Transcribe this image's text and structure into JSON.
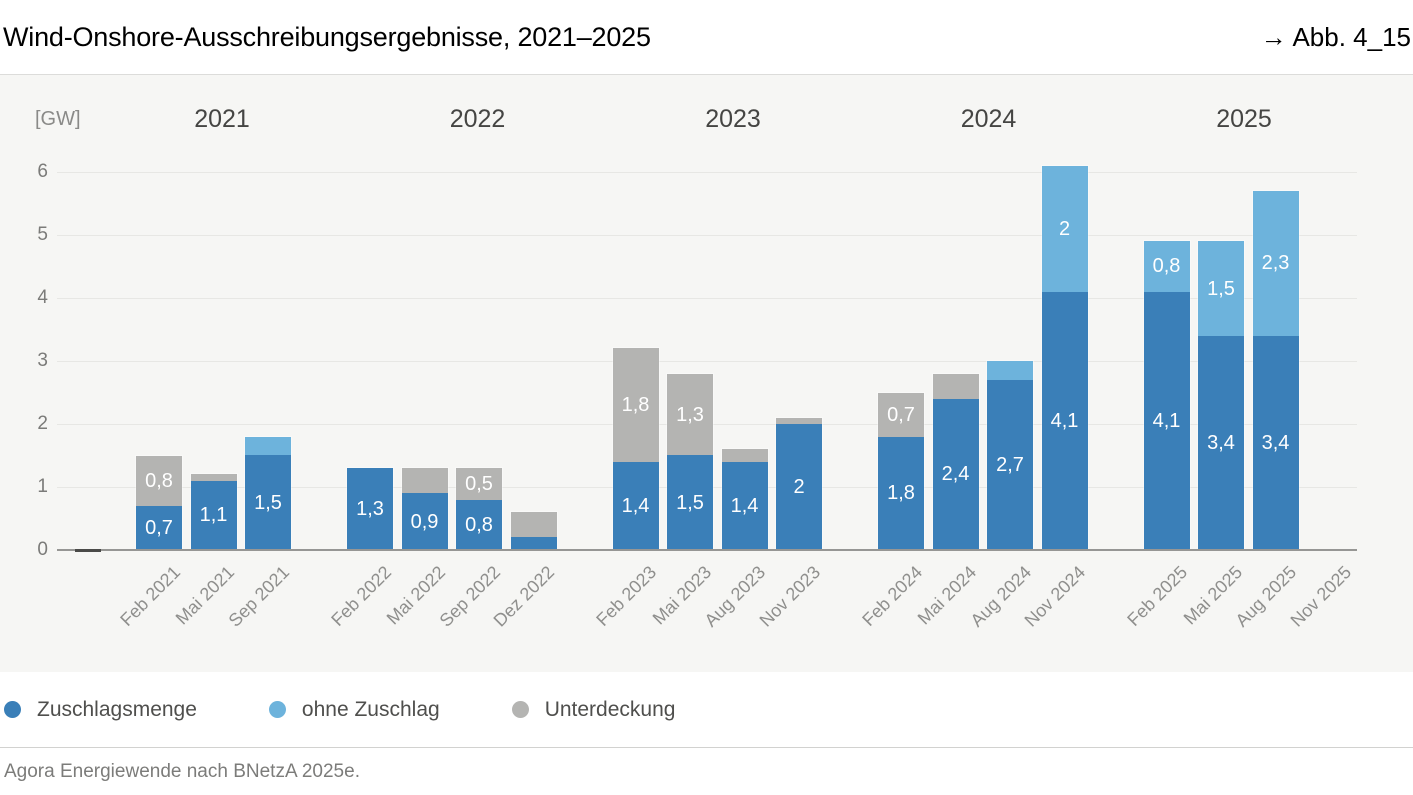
{
  "header": {
    "title": "Wind-Onshore-Ausschreibungsergebnisse, 2021–2025",
    "figure_ref": "→ Abb. 4_15"
  },
  "footer": {
    "source": "Agora Energiewende nach BNetzA 2025e."
  },
  "legend": [
    {
      "label": "Zuschlagsmenge",
      "color": "#3a7fb8"
    },
    {
      "label": "ohne Zuschlag",
      "color": "#6db3dc"
    },
    {
      "label": "Unterdeckung",
      "color": "#b4b4b2"
    }
  ],
  "chart_data": {
    "type": "bar",
    "stacked": true,
    "title": "Wind-Onshore-Ausschreibungsergebnisse, 2021–2025",
    "unit_label": "[GW]",
    "ylabel": "GW",
    "ylim": [
      0,
      6
    ],
    "yticks": [
      0,
      1,
      2,
      3,
      4,
      5,
      6
    ],
    "grid": "horizontal",
    "legend_position": "bottom",
    "series_names": [
      "Zuschlagsmenge",
      "ohne Zuschlag",
      "Unterdeckung"
    ],
    "colors": {
      "Zuschlagsmenge": "#3a7fb8",
      "ohne Zuschlag": "#6db3dc",
      "Unterdeckung": "#b4b4b2"
    },
    "groups": [
      {
        "year": "2021",
        "bars": [
          {
            "month": "Feb 2021",
            "segments": [
              {
                "series": "Zuschlagsmenge",
                "value": 0.7,
                "label": "0,7"
              },
              {
                "series": "Unterdeckung",
                "value": 0.8,
                "label": "0,8"
              }
            ]
          },
          {
            "month": "Mai 2021",
            "segments": [
              {
                "series": "Zuschlagsmenge",
                "value": 1.1,
                "label": "1,1"
              },
              {
                "series": "Unterdeckung",
                "value": 0.1,
                "label": ""
              }
            ]
          },
          {
            "month": "Sep 2021",
            "segments": [
              {
                "series": "Zuschlagsmenge",
                "value": 1.5,
                "label": "1,5"
              },
              {
                "series": "ohne Zuschlag",
                "value": 0.3,
                "label": ""
              }
            ]
          }
        ]
      },
      {
        "year": "2022",
        "bars": [
          {
            "month": "Feb 2022",
            "segments": [
              {
                "series": "Zuschlagsmenge",
                "value": 1.3,
                "label": "1,3"
              }
            ]
          },
          {
            "month": "Mai 2022",
            "segments": [
              {
                "series": "Zuschlagsmenge",
                "value": 0.9,
                "label": "0,9"
              },
              {
                "series": "Unterdeckung",
                "value": 0.4,
                "label": ""
              }
            ]
          },
          {
            "month": "Sep 2022",
            "segments": [
              {
                "series": "Zuschlagsmenge",
                "value": 0.8,
                "label": "0,8"
              },
              {
                "series": "Unterdeckung",
                "value": 0.5,
                "label": "0,5"
              }
            ]
          },
          {
            "month": "Dez 2022",
            "segments": [
              {
                "series": "Zuschlagsmenge",
                "value": 0.2,
                "label": ""
              },
              {
                "series": "Unterdeckung",
                "value": 0.4,
                "label": ""
              }
            ]
          }
        ]
      },
      {
        "year": "2023",
        "bars": [
          {
            "month": "Feb 2023",
            "segments": [
              {
                "series": "Zuschlagsmenge",
                "value": 1.4,
                "label": "1,4"
              },
              {
                "series": "Unterdeckung",
                "value": 1.8,
                "label": "1,8"
              }
            ]
          },
          {
            "month": "Mai 2023",
            "segments": [
              {
                "series": "Zuschlagsmenge",
                "value": 1.5,
                "label": "1,5"
              },
              {
                "series": "Unterdeckung",
                "value": 1.3,
                "label": "1,3"
              }
            ]
          },
          {
            "month": "Aug 2023",
            "segments": [
              {
                "series": "Zuschlagsmenge",
                "value": 1.4,
                "label": "1,4"
              },
              {
                "series": "Unterdeckung",
                "value": 0.2,
                "label": ""
              }
            ]
          },
          {
            "month": "Nov 2023",
            "segments": [
              {
                "series": "Zuschlagsmenge",
                "value": 2.0,
                "label": "2"
              },
              {
                "series": "Unterdeckung",
                "value": 0.1,
                "label": ""
              }
            ]
          }
        ]
      },
      {
        "year": "2024",
        "bars": [
          {
            "month": "Feb 2024",
            "segments": [
              {
                "series": "Zuschlagsmenge",
                "value": 1.8,
                "label": "1,8"
              },
              {
                "series": "Unterdeckung",
                "value": 0.7,
                "label": "0,7"
              }
            ]
          },
          {
            "month": "Mai 2024",
            "segments": [
              {
                "series": "Zuschlagsmenge",
                "value": 2.4,
                "label": "2,4"
              },
              {
                "series": "Unterdeckung",
                "value": 0.4,
                "label": ""
              }
            ]
          },
          {
            "month": "Aug 2024",
            "segments": [
              {
                "series": "Zuschlagsmenge",
                "value": 2.7,
                "label": "2,7"
              },
              {
                "series": "ohne Zuschlag",
                "value": 0.3,
                "label": ""
              }
            ]
          },
          {
            "month": "Nov 2024",
            "segments": [
              {
                "series": "Zuschlagsmenge",
                "value": 4.1,
                "label": "4,1"
              },
              {
                "series": "ohne Zuschlag",
                "value": 2.0,
                "label": "2"
              }
            ]
          }
        ]
      },
      {
        "year": "2025",
        "bars": [
          {
            "month": "Feb 2025",
            "segments": [
              {
                "series": "Zuschlagsmenge",
                "value": 4.1,
                "label": "4,1"
              },
              {
                "series": "ohne Zuschlag",
                "value": 0.8,
                "label": "0,8"
              }
            ]
          },
          {
            "month": "Mai 2025",
            "segments": [
              {
                "series": "Zuschlagsmenge",
                "value": 3.4,
                "label": "3,4"
              },
              {
                "series": "ohne Zuschlag",
                "value": 1.5,
                "label": "1,5"
              }
            ]
          },
          {
            "month": "Aug 2025",
            "segments": [
              {
                "series": "Zuschlagsmenge",
                "value": 3.4,
                "label": "3,4"
              },
              {
                "series": "ohne Zuschlag",
                "value": 2.3,
                "label": "2,3"
              }
            ]
          },
          {
            "month": "Nov 2025",
            "segments": []
          }
        ]
      }
    ]
  }
}
